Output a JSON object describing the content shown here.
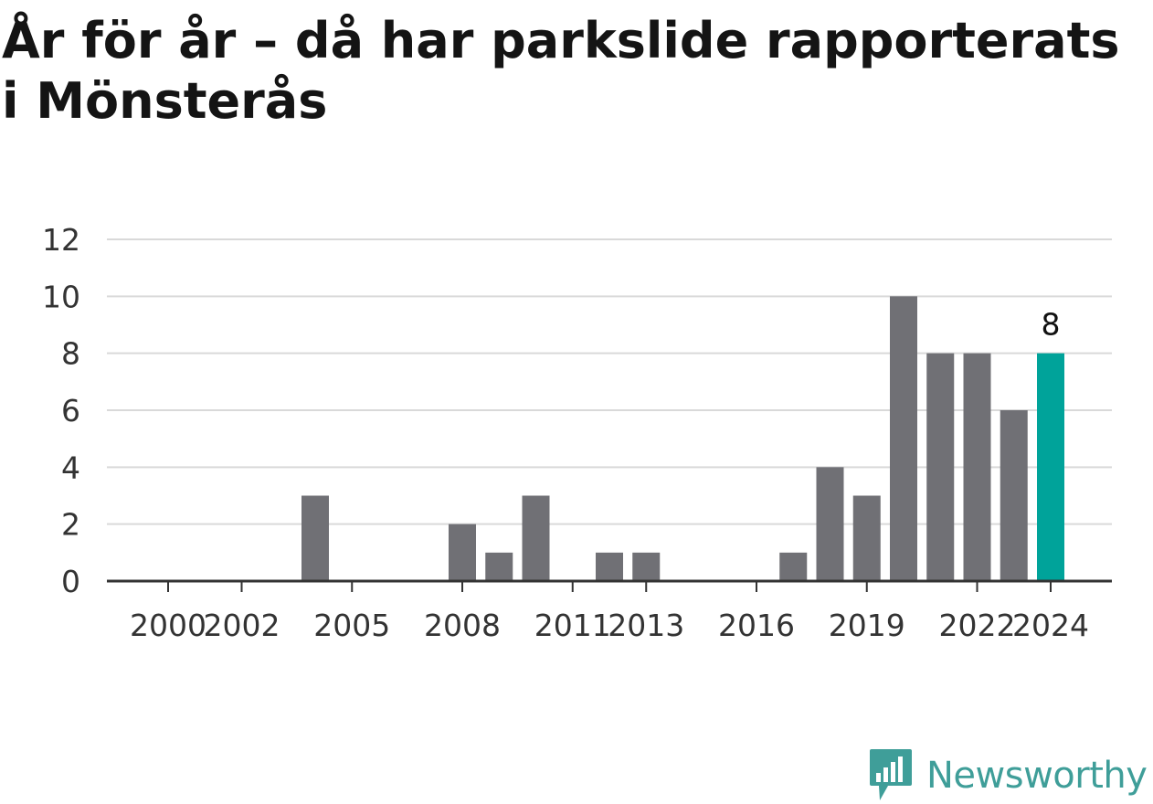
{
  "title": "År för år – då har parkslide rapporterats i Mönsterås",
  "brand": {
    "name": "Newsworthy",
    "logo_icon": "newsworthy-bar-chart-icon"
  },
  "colors": {
    "bar": "#707075",
    "highlight": "#00a39a",
    "grid": "#d9d9d9",
    "axis": "#333333",
    "text": "#333333"
  },
  "chart_data": {
    "type": "bar",
    "categories": [
      "2000",
      "2001",
      "2002",
      "2003",
      "2004",
      "2005",
      "2006",
      "2007",
      "2008",
      "2009",
      "2010",
      "2011",
      "2012",
      "2013",
      "2014",
      "2015",
      "2016",
      "2017",
      "2018",
      "2019",
      "2020",
      "2021",
      "2022",
      "2023",
      "2024"
    ],
    "values": [
      0,
      0,
      0,
      0,
      3,
      0,
      0,
      0,
      2,
      1,
      3,
      0,
      1,
      1,
      0,
      0,
      0,
      1,
      4,
      3,
      10,
      8,
      8,
      6,
      8
    ],
    "x_tick_labels": [
      "2000",
      "2002",
      "2005",
      "2008",
      "2011",
      "2013",
      "2016",
      "2019",
      "2022",
      "2024"
    ],
    "ylim": [
      0,
      12
    ],
    "y_ticks": [
      0,
      2,
      4,
      6,
      8,
      10,
      12
    ],
    "highlight_category": "2024",
    "data_labels": [
      {
        "category": "2024",
        "text": "8"
      }
    ],
    "grid": true,
    "legend": "none"
  }
}
